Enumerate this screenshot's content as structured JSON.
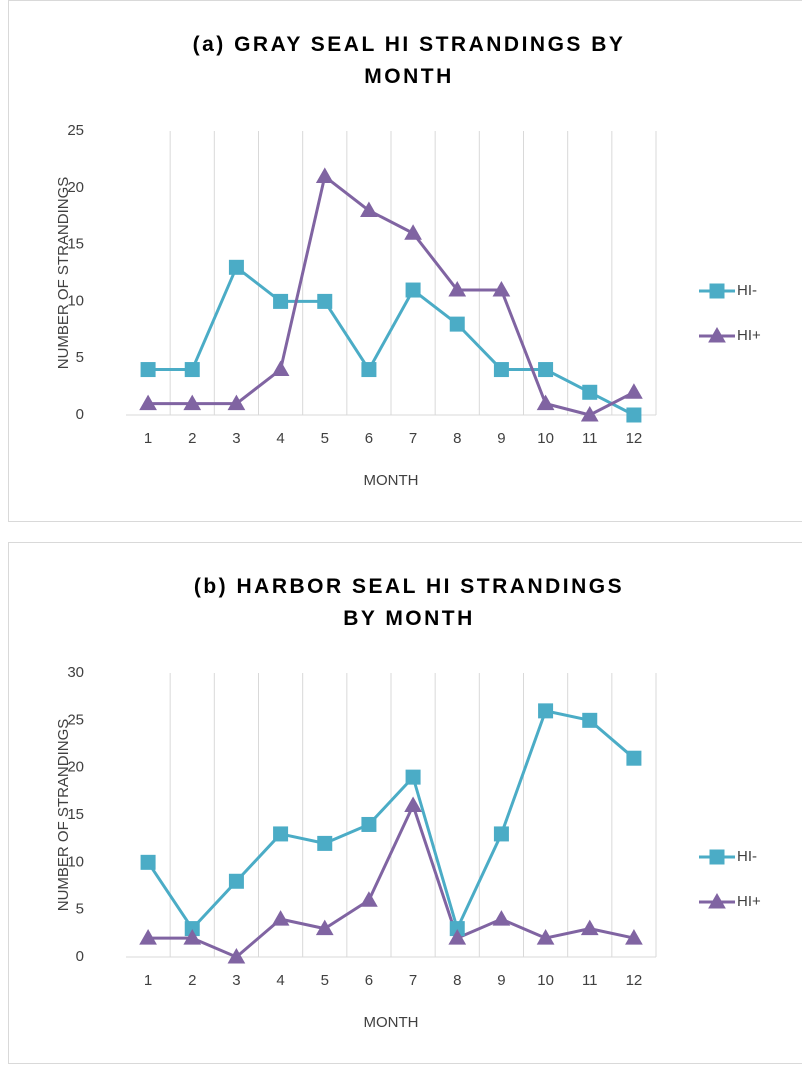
{
  "chart_data": [
    {
      "type": "line",
      "title": "(a) GRAY SEAL HI STRANDINGS BY MONTH",
      "x_label": "MONTH",
      "y_label": "NUMBER OF STRANDINGS",
      "categories": [
        "1",
        "2",
        "3",
        "4",
        "5",
        "6",
        "7",
        "8",
        "9",
        "10",
        "11",
        "12"
      ],
      "series": [
        {
          "name": "HI-",
          "color": "#4bacc6",
          "marker": "square",
          "values": [
            4,
            4,
            13,
            10,
            10,
            4,
            11,
            8,
            4,
            4,
            2,
            0
          ]
        },
        {
          "name": "HI+",
          "color": "#8064a2",
          "marker": "triangle",
          "values": [
            1,
            1,
            1,
            4,
            21,
            18,
            16,
            11,
            11,
            1,
            0,
            2
          ]
        }
      ],
      "ylim": [
        0,
        25
      ],
      "yticks": [
        0,
        5,
        10,
        15,
        20,
        25
      ],
      "legend": "right"
    },
    {
      "type": "line",
      "title": "(b) HARBOR SEAL HI STRANDINGS BY MONTH",
      "x_label": "MONTH",
      "y_label": "NUMBER OF STRANDINGS",
      "categories": [
        "1",
        "2",
        "3",
        "4",
        "5",
        "6",
        "7",
        "8",
        "9",
        "10",
        "11",
        "12"
      ],
      "series": [
        {
          "name": "HI-",
          "color": "#4bacc6",
          "marker": "square",
          "values": [
            10,
            3,
            8,
            13,
            12,
            14,
            19,
            3,
            13,
            26,
            25,
            21
          ]
        },
        {
          "name": "HI+",
          "color": "#8064a2",
          "marker": "triangle",
          "values": [
            2,
            2,
            0,
            4,
            3,
            6,
            16,
            2,
            4,
            2,
            3,
            2
          ]
        }
      ],
      "ylim": [
        0,
        30
      ],
      "yticks": [
        0,
        5,
        10,
        15,
        20,
        25,
        30
      ],
      "legend": "right"
    }
  ]
}
